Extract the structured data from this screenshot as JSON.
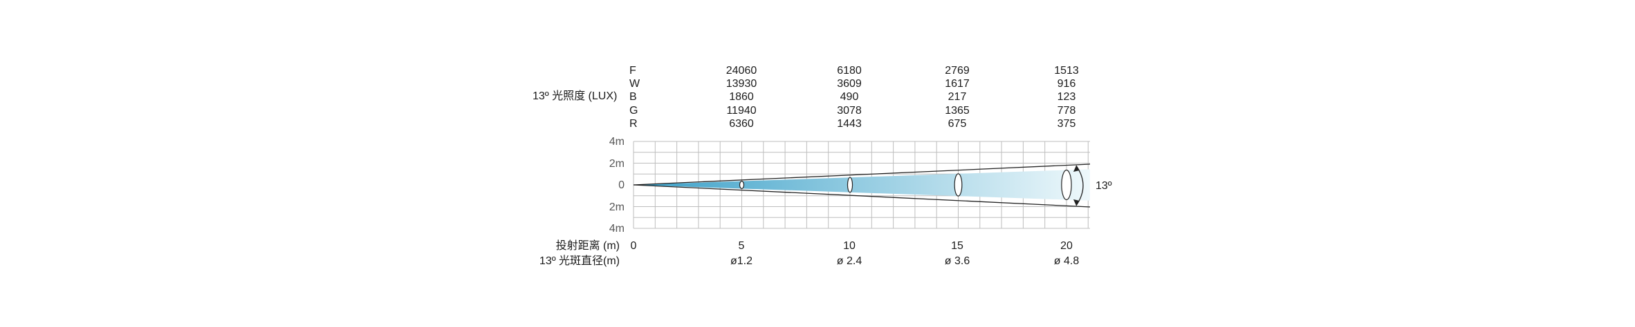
{
  "beam_angle": "13º",
  "lux_label": "13º 光照度 (LUX)",
  "distance_label": "投射距离 (m)",
  "spot_label": "13º 光斑直径(m)",
  "channels": [
    "F",
    "W",
    "B",
    "G",
    "R"
  ],
  "lux_table": [
    [
      "24060",
      "6180",
      "2769",
      "1513"
    ],
    [
      "13930",
      "3609",
      "1617",
      "916"
    ],
    [
      "1860",
      "490",
      "217",
      "123"
    ],
    [
      "11940",
      "3078",
      "1365",
      "778"
    ],
    [
      "6360",
      "1443",
      "675",
      "375"
    ]
  ],
  "y_axis_ticks": [
    "4m",
    "2m",
    "0",
    "2m",
    "4m"
  ],
  "distances": [
    "0",
    "5",
    "10",
    "15",
    "20"
  ],
  "spot_diameters": [
    "ø1.2",
    "ø 2.4",
    "ø 3.6",
    "ø 4.8"
  ],
  "colors": {
    "beam_dark": "#3aa0c8",
    "beam_light": "#eef8fb",
    "grid": "#bdbdbd"
  },
  "chart_data": {
    "type": "diagram",
    "beam_angle_deg": 13,
    "distance_m": [
      5,
      10,
      15,
      20
    ],
    "spot_diameter_m": [
      1.2,
      2.4,
      3.6,
      4.8
    ],
    "lux": {
      "F": [
        24060,
        6180,
        2769,
        1513
      ],
      "W": [
        13930,
        3609,
        1617,
        916
      ],
      "B": [
        1860,
        490,
        217,
        123
      ],
      "G": [
        11940,
        3078,
        1365,
        778
      ],
      "R": [
        6360,
        1443,
        675,
        375
      ]
    },
    "xlim": [
      0,
      20
    ],
    "ylim": [
      -4,
      4
    ]
  }
}
